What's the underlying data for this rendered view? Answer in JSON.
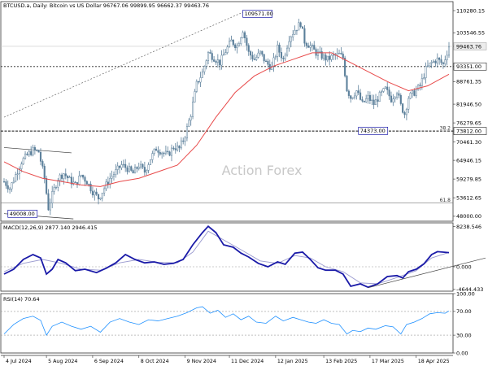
{
  "header": {
    "title": "BTCUSD.a, Daily:  Bitcoin vs US Dollar  96767.06 99899.95 96662.37 99463.76"
  },
  "watermark": "Action Forex",
  "colors": {
    "candle": "#5b7f9a",
    "ma": "#e84a4a",
    "macd": "#1a1aa8",
    "signal": "#9a9acf",
    "rsi": "#1e90ff",
    "axis": "#333333",
    "grid": "#999999",
    "label_border": "#1a1aa8"
  },
  "chart_data": [
    {
      "type": "candlestick",
      "title": "BTCUSD.a, Daily: Bitcoin vs US Dollar",
      "ylim": [
        46500,
        113000
      ],
      "y_ticks": [
        "110280.15",
        "103546.55",
        "99463.76",
        "93351.00",
        "88761.35",
        "81946.50",
        "76279.65",
        "73812.00",
        "70461.30",
        "64946.15",
        "59279.85",
        "53612.65",
        "48000.00"
      ],
      "x_ticks": [
        "4 Jul 2024",
        "5 Aug 2024",
        "6 Sep 2024",
        "8 Oct 2024",
        "9 Nov 2024",
        "11 Dec 2024",
        "12 Jan 2025",
        "13 Feb 2025",
        "17 Mar 2025",
        "18 Apr 2025"
      ],
      "ohlc_note": "approximate daily closing path",
      "close_path": [
        [
          0,
          58500
        ],
        [
          6,
          56500
        ],
        [
          12,
          60500
        ],
        [
          18,
          64500
        ],
        [
          24,
          66500
        ],
        [
          30,
          68000
        ],
        [
          36,
          67500
        ],
        [
          42,
          59500
        ],
        [
          46,
          50500
        ],
        [
          50,
          54500
        ],
        [
          56,
          59500
        ],
        [
          62,
          61000
        ],
        [
          68,
          59000
        ],
        [
          74,
          57500
        ],
        [
          80,
          60500
        ],
        [
          86,
          58500
        ],
        [
          92,
          55500
        ],
        [
          98,
          53500
        ],
        [
          104,
          56500
        ],
        [
          110,
          59500
        ],
        [
          116,
          61500
        ],
        [
          122,
          63500
        ],
        [
          128,
          62500
        ],
        [
          134,
          61000
        ],
        [
          140,
          63500
        ],
        [
          146,
          61500
        ],
        [
          152,
          65500
        ],
        [
          158,
          68500
        ],
        [
          164,
          67500
        ],
        [
          170,
          66500
        ],
        [
          176,
          69000
        ],
        [
          182,
          68500
        ],
        [
          188,
          72500
        ],
        [
          194,
          79000
        ],
        [
          200,
          88000
        ],
        [
          206,
          91500
        ],
        [
          212,
          97500
        ],
        [
          218,
          96000
        ],
        [
          224,
          94500
        ],
        [
          230,
          98000
        ],
        [
          236,
          101000
        ],
        [
          242,
          99500
        ],
        [
          248,
          104500
        ],
        [
          254,
          97500
        ],
        [
          260,
          95500
        ],
        [
          266,
          97500
        ],
        [
          272,
          94500
        ],
        [
          278,
          93000
        ],
        [
          284,
          99000
        ],
        [
          290,
          95500
        ],
        [
          296,
          102000
        ],
        [
          302,
          104500
        ],
        [
          308,
          106500
        ],
        [
          312,
          101000
        ],
        [
          318,
          99500
        ],
        [
          324,
          97500
        ],
        [
          330,
          96500
        ],
        [
          336,
          95500
        ],
        [
          342,
          96500
        ],
        [
          348,
          97000
        ],
        [
          352,
          96000
        ],
        [
          356,
          86500
        ],
        [
          360,
          84000
        ],
        [
          366,
          86000
        ],
        [
          372,
          82000
        ],
        [
          378,
          84000
        ],
        [
          384,
          82000
        ],
        [
          390,
          84500
        ],
        [
          396,
          86500
        ],
        [
          402,
          83500
        ],
        [
          408,
          86000
        ],
        [
          412,
          81500
        ],
        [
          416,
          79000
        ],
        [
          420,
          84000
        ],
        [
          426,
          85500
        ],
        [
          432,
          87500
        ],
        [
          438,
          92500
        ],
        [
          444,
          94500
        ],
        [
          450,
          95500
        ],
        [
          456,
          94000
        ],
        [
          462,
          99463.76
        ]
      ],
      "moving_average": [
        [
          0,
          64500
        ],
        [
          20,
          61500
        ],
        [
          40,
          59500
        ],
        [
          60,
          58500
        ],
        [
          80,
          57500
        ],
        [
          100,
          57000
        ],
        [
          120,
          58500
        ],
        [
          140,
          59500
        ],
        [
          160,
          61500
        ],
        [
          180,
          63500
        ],
        [
          200,
          69500
        ],
        [
          220,
          78000
        ],
        [
          240,
          85500
        ],
        [
          260,
          90500
        ],
        [
          280,
          93500
        ],
        [
          300,
          95500
        ],
        [
          320,
          97500
        ],
        [
          340,
          97500
        ],
        [
          360,
          94500
        ],
        [
          380,
          91500
        ],
        [
          400,
          88500
        ],
        [
          420,
          86000
        ],
        [
          440,
          87500
        ],
        [
          462,
          91000
        ]
      ],
      "levels": [
        {
          "label": "109571.00",
          "value": 109571.0,
          "kind": "high"
        },
        {
          "label": "93351.00",
          "value": 93351.0,
          "kind": "support"
        },
        {
          "label": "74373.00",
          "value": 74373.0,
          "kind": "low"
        },
        {
          "label": "73812.00",
          "value": 73812.0,
          "kind": "fib",
          "fib": "38.2"
        },
        {
          "label": "49008.00",
          "value": 49008.0,
          "kind": "low"
        },
        {
          "value": 52000,
          "kind": "fib",
          "fib": "61.8"
        },
        {
          "label": "99463.76",
          "value": 99463.76,
          "kind": "current"
        }
      ]
    },
    {
      "type": "line",
      "title": "MACD(12,26,9) 2877.140 2946.415",
      "ylim": [
        -5000,
        9000
      ],
      "y_ticks": [
        "8238.546",
        "0.000",
        "-4644.433"
      ],
      "series": [
        {
          "name": "MACD",
          "values": [
            [
              0,
              -1500
            ],
            [
              10,
              -500
            ],
            [
              20,
              1500
            ],
            [
              30,
              2500
            ],
            [
              38,
              1800
            ],
            [
              44,
              -1500
            ],
            [
              50,
              -500
            ],
            [
              56,
              1500
            ],
            [
              64,
              800
            ],
            [
              74,
              -800
            ],
            [
              84,
              -500
            ],
            [
              96,
              -1200
            ],
            [
              106,
              -300
            ],
            [
              116,
              800
            ],
            [
              126,
              2500
            ],
            [
              136,
              1500
            ],
            [
              146,
              800
            ],
            [
              156,
              1000
            ],
            [
              166,
              500
            ],
            [
              176,
              700
            ],
            [
              186,
              1500
            ],
            [
              196,
              4500
            ],
            [
              206,
              7000
            ],
            [
              212,
              8300
            ],
            [
              220,
              7000
            ],
            [
              228,
              4500
            ],
            [
              238,
              4000
            ],
            [
              246,
              2800
            ],
            [
              254,
              2000
            ],
            [
              264,
              700
            ],
            [
              274,
              0
            ],
            [
              284,
              1000
            ],
            [
              292,
              500
            ],
            [
              302,
              2800
            ],
            [
              310,
              3000
            ],
            [
              318,
              1500
            ],
            [
              326,
              -200
            ],
            [
              334,
              -700
            ],
            [
              344,
              -700
            ],
            [
              352,
              -1500
            ],
            [
              360,
              -4000
            ],
            [
              370,
              -3500
            ],
            [
              378,
              -4200
            ],
            [
              388,
              -3500
            ],
            [
              398,
              -2000
            ],
            [
              408,
              -1800
            ],
            [
              414,
              -2300
            ],
            [
              420,
              -1000
            ],
            [
              428,
              -500
            ],
            [
              436,
              600
            ],
            [
              444,
              2500
            ],
            [
              450,
              3100
            ],
            [
              456,
              3000
            ],
            [
              462,
              2900
            ]
          ]
        },
        {
          "name": "Signal",
          "values": [
            [
              0,
              -1000
            ],
            [
              20,
              700
            ],
            [
              40,
              1500
            ],
            [
              60,
              700
            ],
            [
              80,
              -500
            ],
            [
              100,
              -700
            ],
            [
              120,
              800
            ],
            [
              140,
              1500
            ],
            [
              160,
              900
            ],
            [
              180,
              800
            ],
            [
              196,
              3000
            ],
            [
              212,
              7300
            ],
            [
              228,
              5500
            ],
            [
              246,
              3500
            ],
            [
              266,
              1200
            ],
            [
              284,
              700
            ],
            [
              302,
              2300
            ],
            [
              318,
              1800
            ],
            [
              334,
              0
            ],
            [
              352,
              -1000
            ],
            [
              370,
              -3300
            ],
            [
              388,
              -3500
            ],
            [
              408,
              -2200
            ],
            [
              428,
              -800
            ],
            [
              444,
              1800
            ],
            [
              462,
              2950
            ]
          ]
        }
      ],
      "trendline": [
        [
          378,
          -4300
        ],
        [
          500,
          1800
        ]
      ]
    },
    {
      "type": "line",
      "title": "RSI(14) 70.64",
      "ylim": [
        0,
        100
      ],
      "y_ticks": [
        "100.00",
        "70.00",
        "30.00",
        "0.00"
      ],
      "series": [
        {
          "name": "RSI",
          "values": [
            [
              0,
              32
            ],
            [
              10,
              48
            ],
            [
              20,
              58
            ],
            [
              30,
              62
            ],
            [
              38,
              55
            ],
            [
              44,
              30
            ],
            [
              50,
              45
            ],
            [
              60,
              52
            ],
            [
              70,
              45
            ],
            [
              80,
              40
            ],
            [
              90,
              45
            ],
            [
              100,
              35
            ],
            [
              110,
              52
            ],
            [
              120,
              58
            ],
            [
              130,
              52
            ],
            [
              140,
              48
            ],
            [
              150,
              56
            ],
            [
              160,
              54
            ],
            [
              170,
              58
            ],
            [
              180,
              62
            ],
            [
              190,
              68
            ],
            [
              200,
              76
            ],
            [
              206,
              78
            ],
            [
              214,
              67
            ],
            [
              222,
              72
            ],
            [
              230,
              60
            ],
            [
              238,
              66
            ],
            [
              246,
              56
            ],
            [
              254,
              62
            ],
            [
              262,
              52
            ],
            [
              272,
              50
            ],
            [
              282,
              62
            ],
            [
              290,
              54
            ],
            [
              300,
              60
            ],
            [
              308,
              56
            ],
            [
              316,
              52
            ],
            [
              324,
              50
            ],
            [
              332,
              56
            ],
            [
              340,
              50
            ],
            [
              348,
              48
            ],
            [
              356,
              32
            ],
            [
              362,
              38
            ],
            [
              370,
              36
            ],
            [
              378,
              42
            ],
            [
              386,
              40
            ],
            [
              396,
              46
            ],
            [
              404,
              44
            ],
            [
              412,
              32
            ],
            [
              418,
              48
            ],
            [
              426,
              52
            ],
            [
              434,
              58
            ],
            [
              442,
              66
            ],
            [
              450,
              68
            ],
            [
              458,
              67
            ],
            [
              462,
              70.64
            ]
          ]
        }
      ]
    }
  ]
}
